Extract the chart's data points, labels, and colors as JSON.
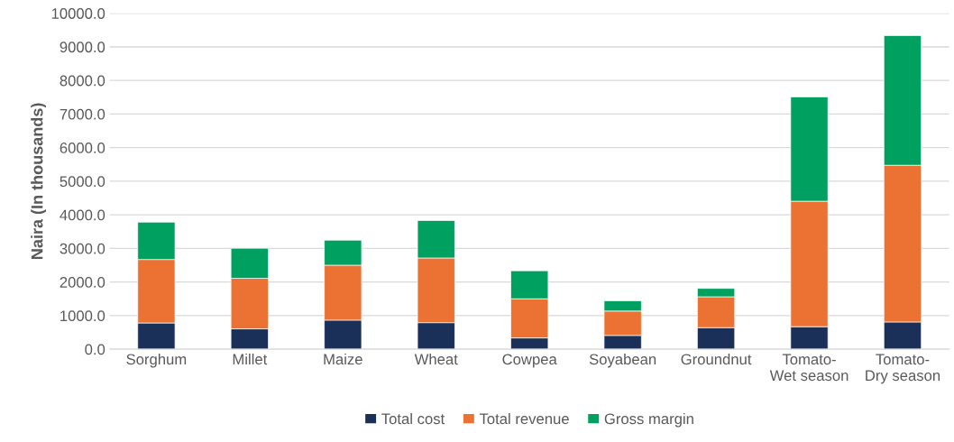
{
  "chart_data": {
    "type": "bar",
    "stacked": true,
    "ylabel": "Naira (In thousands)",
    "categories": [
      "Sorghum",
      "Millet",
      "Maize",
      "Wheat",
      "Cowpea",
      "Soyabean",
      "Groundnut",
      "Tomato-\nWet season",
      "Tomato-\nDry season"
    ],
    "series": [
      {
        "name": "Total cost",
        "color": "#1a3058",
        "values": [
          780,
          605,
          865,
          790,
          335,
          410,
          640,
          670,
          810
        ]
      },
      {
        "name": "Total revenue",
        "color": "#eb7233",
        "values": [
          1890,
          1505,
          1635,
          1925,
          1165,
          725,
          920,
          3735,
          4665
        ]
      },
      {
        "name": "Gross margin",
        "color": "#00a060",
        "values": [
          1110,
          895,
          745,
          1115,
          835,
          305,
          250,
          3105,
          3860
        ]
      }
    ],
    "ylim": [
      0,
      10000
    ],
    "yticks": [
      {
        "value": 0,
        "label": "0.0"
      },
      {
        "value": 1000,
        "label": "1000.0"
      },
      {
        "value": 2000,
        "label": "2000.0"
      },
      {
        "value": 3000,
        "label": "3000.0"
      },
      {
        "value": 4000,
        "label": "4000.0"
      },
      {
        "value": 5000,
        "label": "5000.0"
      },
      {
        "value": 6000,
        "label": "6000.0"
      },
      {
        "value": 7000,
        "label": "7000.0"
      },
      {
        "value": 8000,
        "label": "8000.0"
      },
      {
        "value": 9000,
        "label": "9000.0"
      },
      {
        "value": 10000,
        "label": "10000.0"
      }
    ],
    "grid": "y",
    "legend": "bottom"
  }
}
